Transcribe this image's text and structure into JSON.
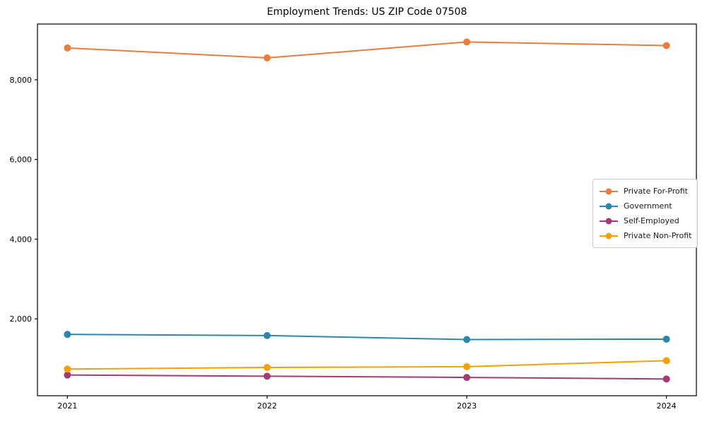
{
  "figure": {
    "background": "#ffffff",
    "axis_color": "#000000",
    "text_color": "#000000"
  },
  "chart_data": {
    "type": "line",
    "title": "Employment Trends: US ZIP Code 07508",
    "xlabel": "",
    "ylabel": "",
    "x": [
      2021,
      2022,
      2023,
      2024
    ],
    "x_labels": [
      "2021",
      "2022",
      "2023",
      "2024"
    ],
    "series": [
      {
        "name": "Private For-Profit",
        "color": "#e87d3e",
        "values": [
          8800,
          8550,
          8950,
          8860
        ]
      },
      {
        "name": "Government",
        "color": "#2e86ab",
        "values": [
          1610,
          1580,
          1480,
          1490
        ]
      },
      {
        "name": "Self-Employed",
        "color": "#a23b72",
        "values": [
          590,
          560,
          530,
          490
        ]
      },
      {
        "name": "Private Non-Profit",
        "color": "#f2a104",
        "values": [
          740,
          780,
          800,
          950
        ]
      }
    ],
    "xlim": [
      2020.85,
      2024.15
    ],
    "ylim": [
      70,
      9400
    ],
    "yticks": [
      2000,
      4000,
      6000,
      8000
    ],
    "ytick_labels": [
      "2,000",
      "4,000",
      "6,000",
      "8,000"
    ],
    "grid": false,
    "legend_position": "center-right",
    "marker": "circle",
    "line_width": 2,
    "marker_radius": 5
  }
}
